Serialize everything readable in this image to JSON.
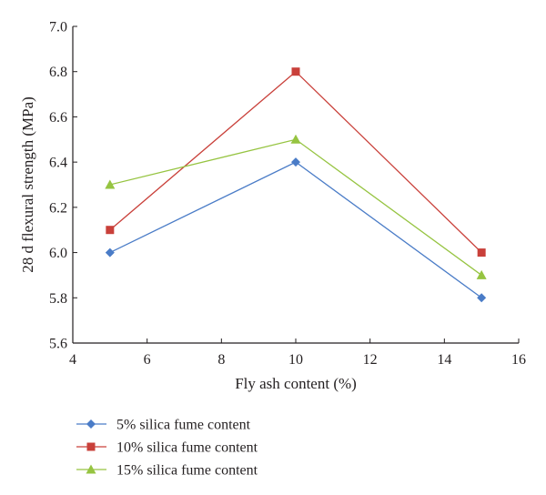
{
  "chart_data": {
    "type": "line",
    "xlabel": "Fly ash content (%)",
    "ylabel": "28 d flexural strength (MPa)",
    "xlim": [
      4,
      16
    ],
    "ylim": [
      5.6,
      7.0
    ],
    "xticks": [
      "4",
      "6",
      "8",
      "10",
      "12",
      "14",
      "16"
    ],
    "yticks": [
      "5.6",
      "5.8",
      "6.0",
      "6.2",
      "6.4",
      "6.6",
      "6.8",
      "7.0"
    ],
    "x": [
      5,
      10,
      15
    ],
    "series": [
      {
        "name": "5% silica fume content",
        "values": [
          6.0,
          6.4,
          5.8
        ],
        "color": "#4a7cc7",
        "marker": "diamond"
      },
      {
        "name": "10% silica fume content",
        "values": [
          6.1,
          6.8,
          6.0
        ],
        "color": "#c9403a",
        "marker": "square"
      },
      {
        "name": "15% silica fume content",
        "values": [
          6.3,
          6.5,
          5.9
        ],
        "color": "#96c441",
        "marker": "triangle"
      }
    ],
    "grid": false,
    "legend_position": "bottom-left"
  }
}
